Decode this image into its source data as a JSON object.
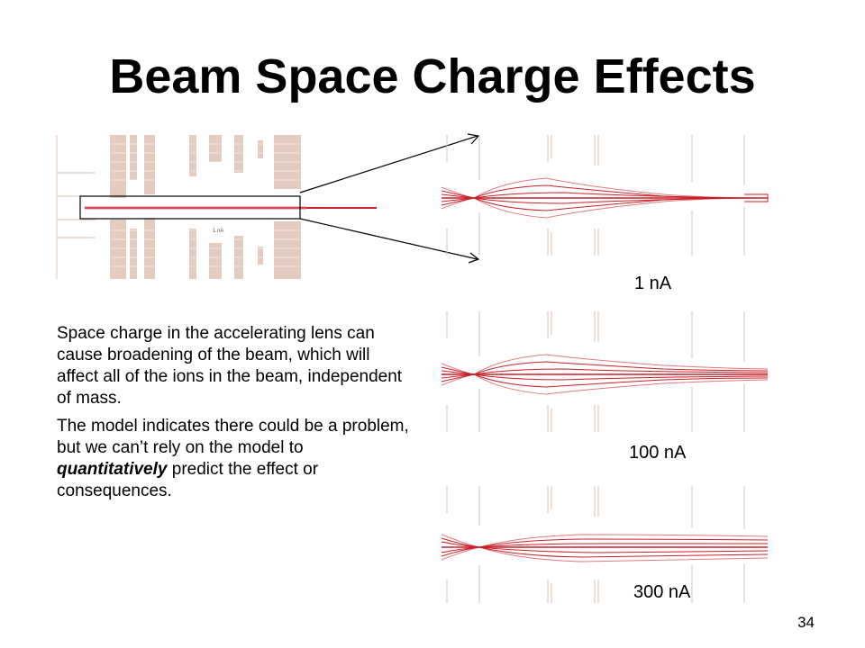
{
  "slide": {
    "title": "Beam Space Charge Effects",
    "page_number": "34"
  },
  "overview": {
    "inset_label": "1 nA"
  },
  "panels": [
    {
      "label": "1 nA"
    },
    {
      "label": "100 nA"
    },
    {
      "label": "300 nA"
    }
  ],
  "text": {
    "para1": "Space charge in the accelerating lens can cause broadening of the beam, which will affect all of the ions in the beam, independent of mass.",
    "para2_before": "The model indicates there could be a problem, but we can’t rely on the model to ",
    "para2_emphasis": "quantitatively",
    "para2_after": " predict the effect or consequences."
  },
  "colors": {
    "beam": "#c8202a",
    "beam_light": "#e07a80",
    "electrode": "#d9bfb2"
  }
}
